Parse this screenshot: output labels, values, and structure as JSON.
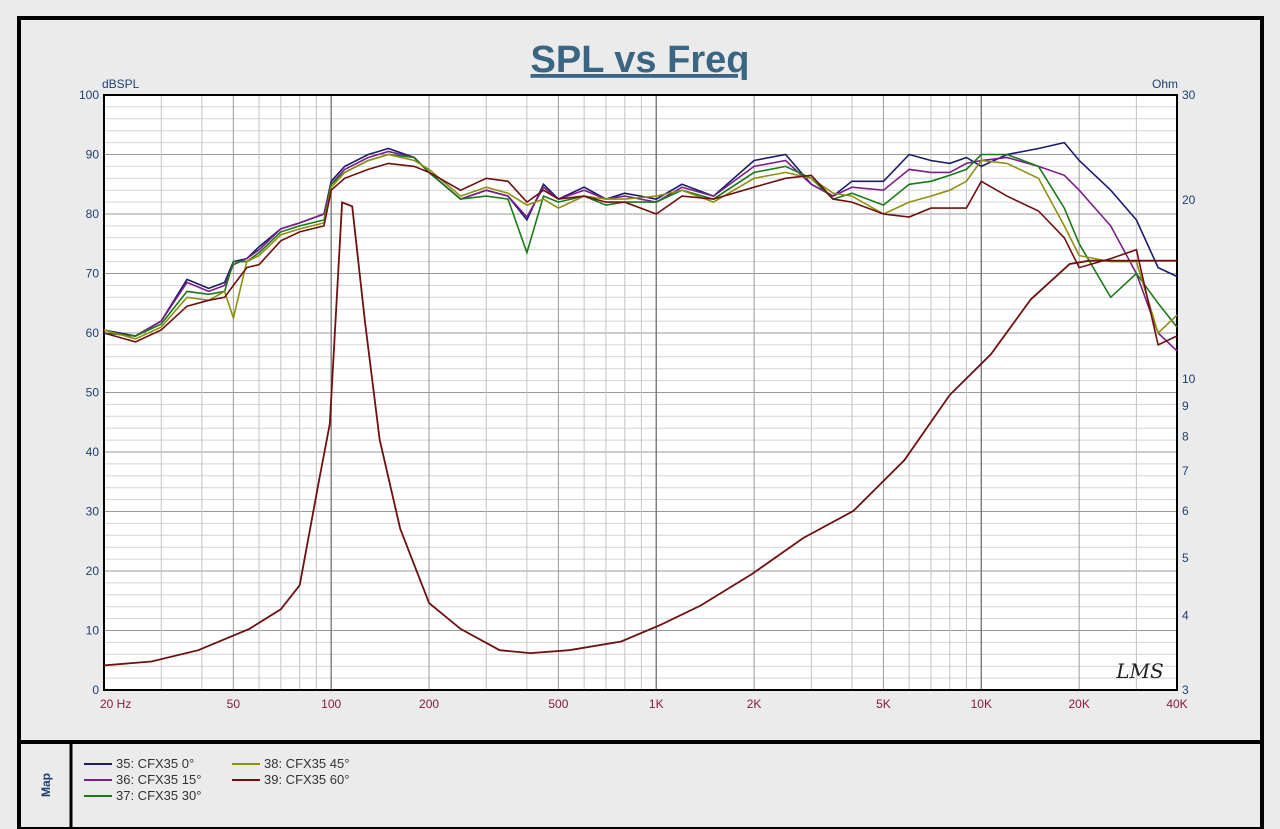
{
  "chart_data": {
    "type": "line",
    "title": "SPL vs Freq",
    "ylabel": "dBSPL",
    "y2label": "Ohm",
    "xscale": "log",
    "xlim": [
      20,
      40000
    ],
    "ylim": [
      0,
      100
    ],
    "y2lim": [
      3,
      30
    ],
    "y2scale": "log",
    "grid": true,
    "xticks": [
      {
        "v": 20,
        "label": "20  Hz"
      },
      {
        "v": 50,
        "label": "50"
      },
      {
        "v": 100,
        "label": "100"
      },
      {
        "v": 200,
        "label": "200"
      },
      {
        "v": 500,
        "label": "500"
      },
      {
        "v": 1000,
        "label": "1K"
      },
      {
        "v": 2000,
        "label": "2K"
      },
      {
        "v": 5000,
        "label": "5K"
      },
      {
        "v": 10000,
        "label": "10K"
      },
      {
        "v": 20000,
        "label": "20K"
      },
      {
        "v": 40000,
        "label": "40K"
      }
    ],
    "yticks": [
      "0",
      "10",
      "20",
      "30",
      "40",
      "50",
      "60",
      "70",
      "80",
      "90",
      "100"
    ],
    "y2ticks": [
      "3",
      "4",
      "5",
      "6",
      "7",
      "8",
      "9",
      "10",
      "20",
      "30"
    ],
    "x": [
      20,
      25,
      30,
      36,
      42,
      47,
      50,
      55,
      60,
      70,
      80,
      95,
      100,
      110,
      130,
      150,
      180,
      200,
      250,
      300,
      350,
      400,
      450,
      500,
      600,
      700,
      800,
      1000,
      1200,
      1500,
      2000,
      2500,
      3000,
      3500,
      4000,
      5000,
      6000,
      7000,
      8000,
      9000,
      10000,
      12000,
      15000,
      18000,
      20000,
      25000,
      30000,
      35000,
      40000
    ],
    "series": [
      {
        "name": "35: CFX35  0°",
        "color": "#1c1c6e",
        "values": [
          60.5,
          59.5,
          62,
          69,
          67.5,
          68.5,
          72,
          72.5,
          74.5,
          77.5,
          78.5,
          80,
          85.5,
          88,
          90,
          91,
          89.5,
          87,
          82.5,
          84,
          83,
          79,
          85,
          82.5,
          84.5,
          82.5,
          83.5,
          82.5,
          85,
          83,
          89,
          90,
          85,
          83,
          85.5,
          85.5,
          90,
          89,
          88.5,
          89.5,
          88,
          90,
          91,
          92,
          89,
          84,
          79,
          71,
          69.5
        ]
      },
      {
        "name": "36: CFX35  15°",
        "color": "#7a1f8a",
        "values": [
          60,
          59.5,
          62,
          68.5,
          67,
          68,
          71.5,
          72.5,
          74,
          77.5,
          78.5,
          80,
          85,
          87.5,
          89.5,
          90.5,
          89.5,
          87,
          82.5,
          84,
          83,
          79.5,
          84.5,
          82.5,
          84,
          82.5,
          83,
          82,
          84.5,
          83,
          88,
          89,
          85,
          83,
          84.5,
          84,
          87.5,
          87,
          87,
          88.5,
          89,
          89.5,
          88,
          86.5,
          84,
          78,
          70,
          60,
          57
        ]
      },
      {
        "name": "37: CFX35  30°",
        "color": "#1a7a1a",
        "values": [
          60,
          59.5,
          61.5,
          67,
          66.5,
          67,
          72,
          72,
          73.5,
          77,
          78,
          79,
          85,
          87,
          89,
          90,
          89.5,
          87,
          82.5,
          83,
          82.5,
          73.5,
          83,
          82,
          83,
          81.5,
          82,
          82,
          84,
          82.5,
          87,
          88,
          86,
          82.5,
          83.5,
          81.5,
          85,
          85.5,
          86.5,
          87.5,
          90,
          90,
          88,
          81,
          75,
          66,
          70,
          65,
          61
        ]
      },
      {
        "name": "38: CFX35  45°",
        "color": "#8f8f10",
        "values": [
          60.5,
          59,
          61,
          66,
          65.5,
          67,
          62.5,
          72,
          73,
          76.5,
          77.5,
          78.5,
          84.5,
          87,
          89,
          90,
          89,
          87.5,
          83,
          84.5,
          83.5,
          81.5,
          82.5,
          81,
          83,
          82.5,
          82.5,
          83,
          84,
          82,
          86,
          87,
          86,
          83.5,
          83,
          80,
          82,
          83,
          84,
          85.5,
          89,
          88.5,
          86,
          78,
          73,
          72,
          72,
          60,
          63
        ]
      },
      {
        "name": "39: CFX35  60°",
        "color": "#6e1010",
        "values": [
          60,
          58.5,
          60.5,
          64.5,
          65.5,
          66,
          68,
          71,
          71.5,
          75.5,
          77,
          78,
          84,
          86,
          87.5,
          88.5,
          88,
          87,
          84,
          86,
          85.5,
          82,
          84,
          82.5,
          83,
          82,
          82,
          80,
          83,
          82.5,
          84.5,
          86,
          86.5,
          82.5,
          82,
          80,
          79.5,
          81,
          81,
          81,
          85.5,
          83,
          80.5,
          76,
          71,
          72.5,
          74,
          58,
          59.5
        ]
      }
    ],
    "impedance": {
      "color": "#6e1010",
      "points": [
        [
          20,
          3.3
        ],
        [
          28,
          3.35
        ],
        [
          39,
          3.5
        ],
        [
          56,
          3.8
        ],
        [
          70,
          4.1
        ],
        [
          80,
          4.5
        ],
        [
          92,
          6.8
        ],
        [
          99,
          8.4
        ],
        [
          108,
          19.8
        ],
        [
          116,
          19.5
        ],
        [
          127,
          12.5
        ],
        [
          141,
          7.9
        ],
        [
          163,
          5.6
        ],
        [
          200,
          4.2
        ],
        [
          250,
          3.8
        ],
        [
          330,
          3.5
        ],
        [
          410,
          3.46
        ],
        [
          540,
          3.5
        ],
        [
          780,
          3.62
        ],
        [
          1030,
          3.86
        ],
        [
          1370,
          4.16
        ],
        [
          1970,
          4.7
        ],
        [
          2830,
          5.4
        ],
        [
          4040,
          6.0
        ],
        [
          5800,
          7.3
        ],
        [
          8000,
          9.4
        ],
        [
          10700,
          11.0
        ],
        [
          14200,
          13.6
        ],
        [
          18700,
          15.6
        ],
        [
          21500,
          15.8
        ],
        [
          40000,
          15.8
        ]
      ]
    },
    "legend_title": "Map",
    "legend_position": "bottom",
    "watermark": "LMS"
  }
}
